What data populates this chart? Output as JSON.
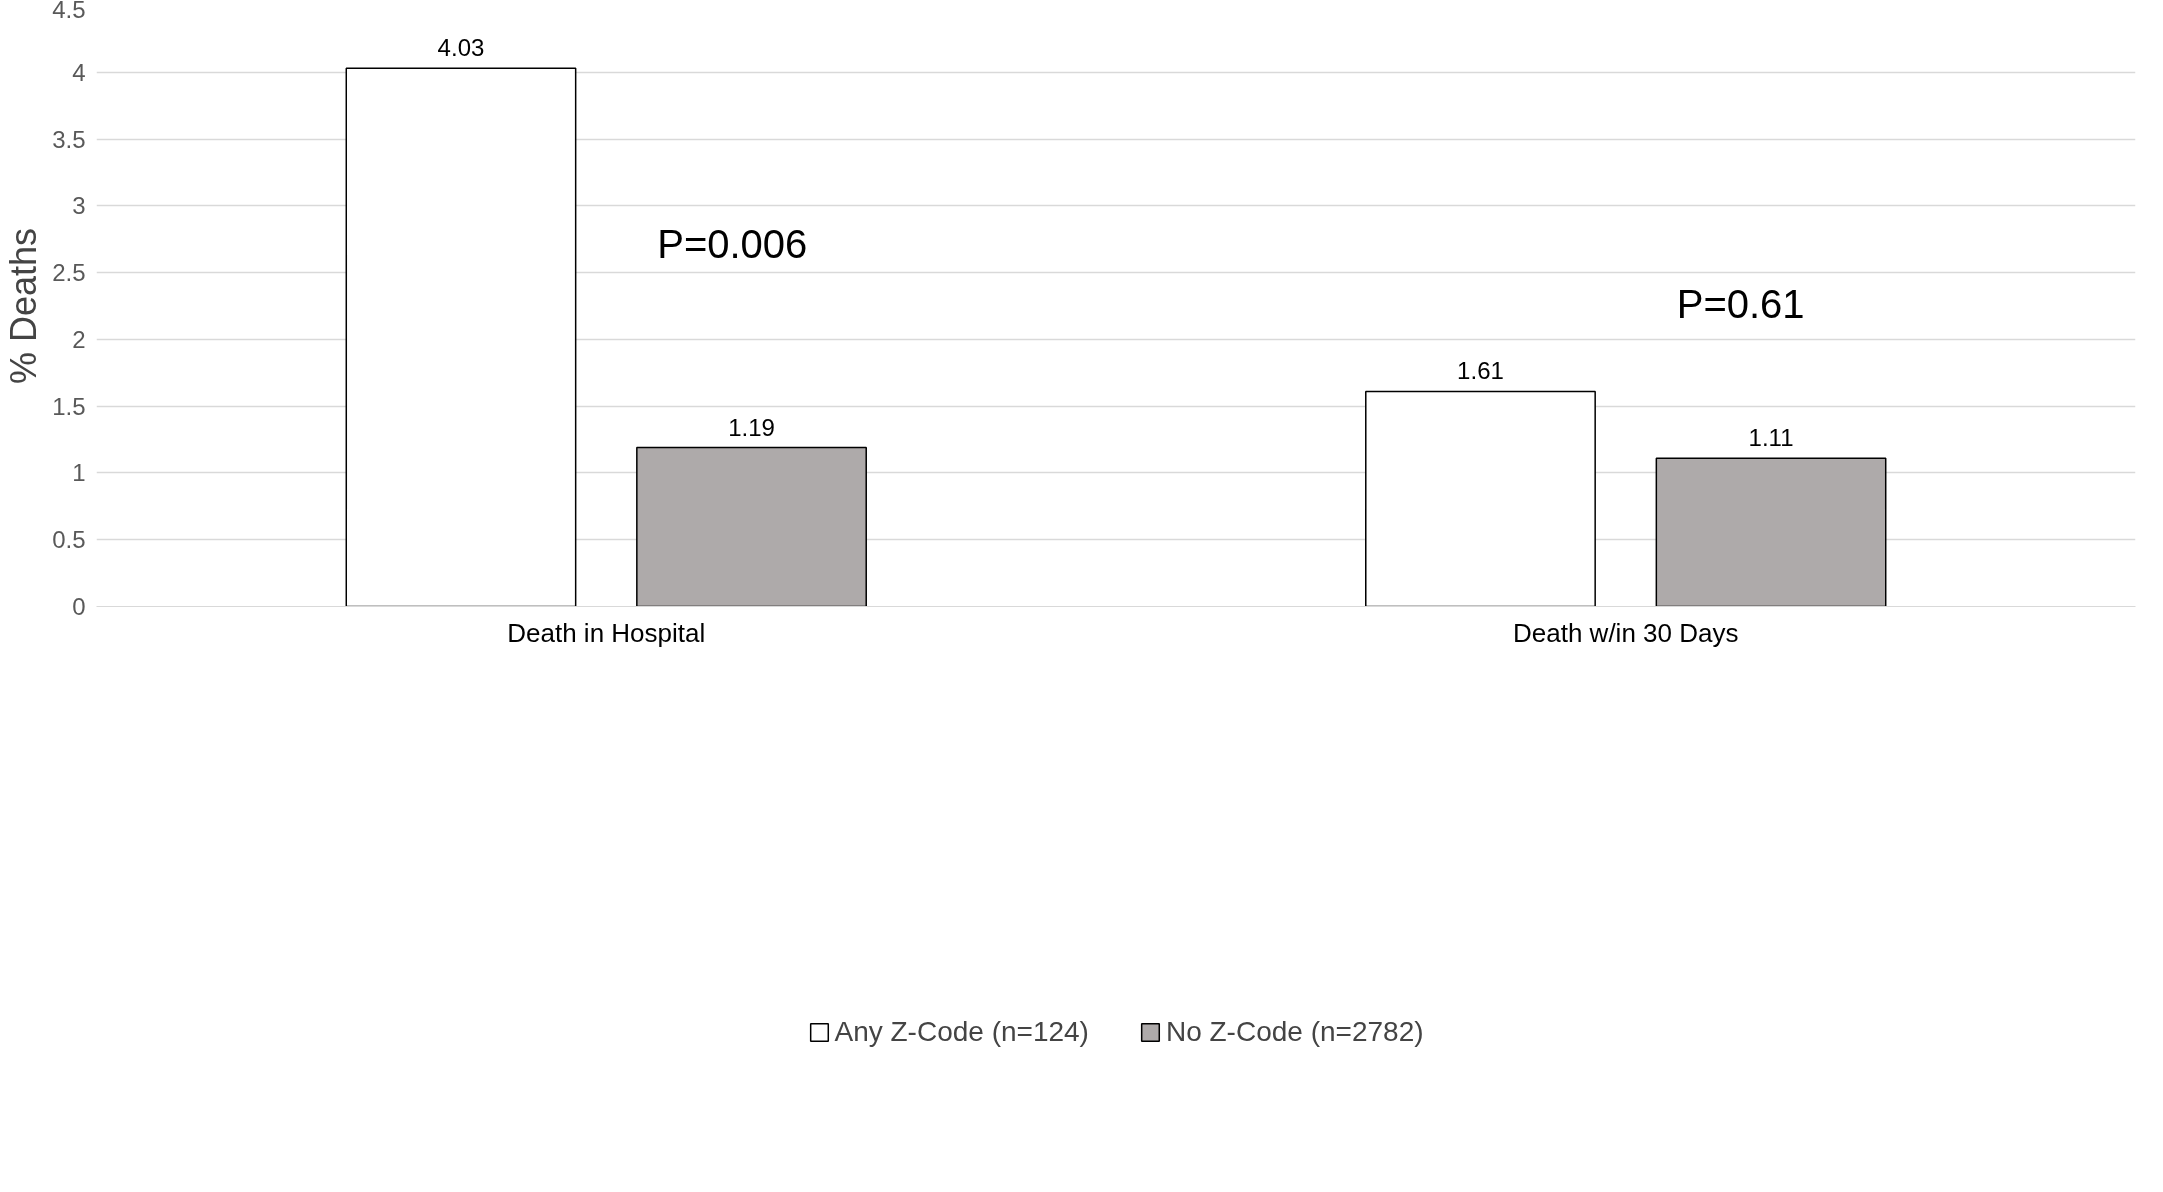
{
  "chart_data": {
    "type": "bar",
    "ylabel": "% Deaths",
    "categories": [
      "Death in Hospital",
      "Death w/in 30 Days"
    ],
    "series": [
      {
        "name": "Any Z-Code (n=124)",
        "color": "#ffffff",
        "values": [
          4.03,
          1.61
        ]
      },
      {
        "name": "No Z-Code (n=2782)",
        "color": "#aeaaaa",
        "values": [
          1.19,
          1.11
        ]
      }
    ],
    "ylim": [
      0,
      4.5
    ],
    "yticks": [
      0,
      0.5,
      1,
      1.5,
      2,
      2.5,
      3,
      3.5,
      4,
      4.5
    ],
    "grid": "y",
    "legend": "bottom",
    "data_labels": true,
    "annotations": [
      "P=0.006",
      "P=0.61"
    ]
  }
}
